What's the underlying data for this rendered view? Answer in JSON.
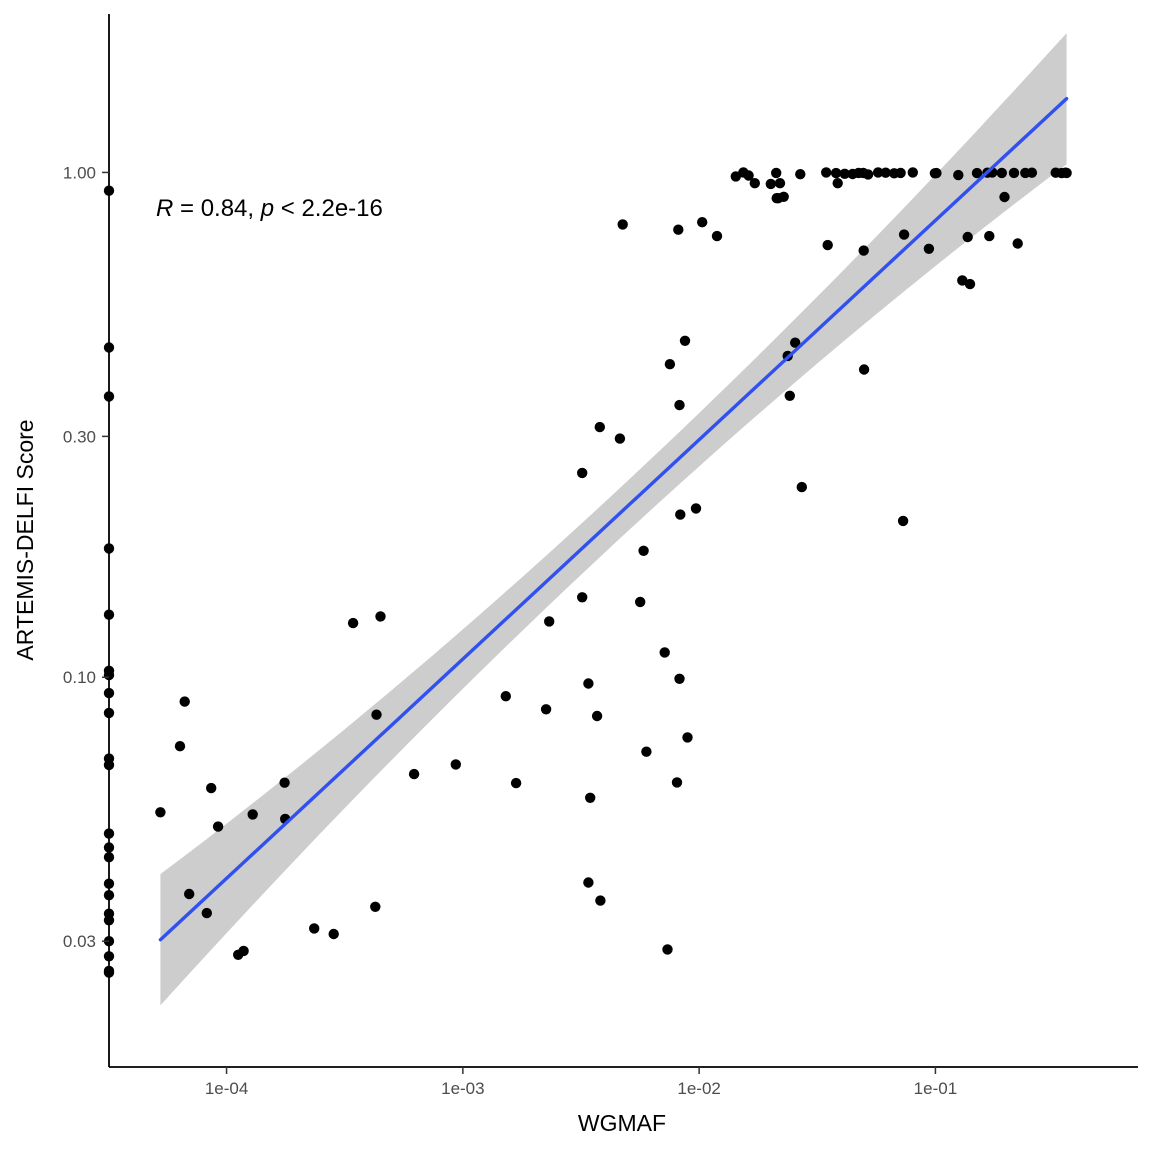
{
  "chart_data": {
    "type": "scatter",
    "title": "",
    "xlabel": "WGMAF",
    "ylabel": "ARTEMIS-DELFI Score",
    "x_scale": "log10",
    "y_scale": "log10",
    "xlim": [
      3.18e-05,
      0.72
    ],
    "ylim": [
      0.0169,
      2.06
    ],
    "x_ticks": [
      {
        "value": 0.0001,
        "label": "1e-04"
      },
      {
        "value": 0.001,
        "label": "1e-03"
      },
      {
        "value": 0.01,
        "label": "1e-02"
      },
      {
        "value": 0.1,
        "label": "1e-01"
      }
    ],
    "y_ticks": [
      {
        "value": 0.03,
        "label": "0.03"
      },
      {
        "value": 0.1,
        "label": "0.10"
      },
      {
        "value": 0.3,
        "label": "0.30"
      },
      {
        "value": 1.0,
        "label": "1.00"
      }
    ],
    "grid": false,
    "legend": "none",
    "annotation": {
      "r_symbol": "R",
      "r_text": " = 0.84, ",
      "p_symbol": "p",
      "p_text": " < 2.2e-16"
    },
    "colors": {
      "points": "#000000",
      "fit_line": "#3050f0",
      "ci_band": "#c8c8c8",
      "axis": "#000000"
    },
    "fit": {
      "x_start": 5.25e-05,
      "y_start": 0.0302,
      "x_end": 0.359,
      "y_end": 1.4,
      "ci_halfwidth_log_ends": 0.13,
      "ci_halfwidth_log_center": 0.05
    },
    "points": [
      [
        3.18e-05,
        0.92
      ],
      [
        3.18e-05,
        0.45
      ],
      [
        3.18e-05,
        0.36
      ],
      [
        3.18e-05,
        0.18
      ],
      [
        3.18e-05,
        0.133
      ],
      [
        3.18e-05,
        0.103
      ],
      [
        3.18e-05,
        0.101
      ],
      [
        3.18e-05,
        0.093
      ],
      [
        3.18e-05,
        0.085
      ],
      [
        3.18e-05,
        0.069
      ],
      [
        3.18e-05,
        0.067
      ],
      [
        3.18e-05,
        0.049
      ],
      [
        3.18e-05,
        0.046
      ],
      [
        3.18e-05,
        0.044
      ],
      [
        3.18e-05,
        0.039
      ],
      [
        3.18e-05,
        0.037
      ],
      [
        3.18e-05,
        0.034
      ],
      [
        3.18e-05,
        0.033
      ],
      [
        3.18e-05,
        0.03
      ],
      [
        3.18e-05,
        0.028
      ],
      [
        3.18e-05,
        0.026
      ],
      [
        3.18e-05,
        0.0262
      ],
      [
        5.25e-05,
        0.054
      ],
      [
        6.35e-05,
        0.073
      ],
      [
        6.65e-05,
        0.0895
      ],
      [
        6.95e-05,
        0.0372
      ],
      [
        8.25e-05,
        0.0341
      ],
      [
        8.61e-05,
        0.0603
      ],
      [
        9.21e-05,
        0.0506
      ],
      [
        0.000112,
        0.0282
      ],
      [
        0.000118,
        0.0287
      ],
      [
        0.000129,
        0.0535
      ],
      [
        0.000176,
        0.0618
      ],
      [
        0.000177,
        0.0524
      ],
      [
        0.000235,
        0.0318
      ],
      [
        0.000284,
        0.031
      ],
      [
        0.000343,
        0.128
      ],
      [
        0.000426,
        0.0351
      ],
      [
        0.000431,
        0.0843
      ],
      [
        0.000448,
        0.132
      ],
      [
        0.000622,
        0.0643
      ],
      [
        0.000934,
        0.0672
      ],
      [
        0.00152,
        0.0917
      ],
      [
        0.00168,
        0.0617
      ],
      [
        0.00225,
        0.0864
      ],
      [
        0.00232,
        0.129
      ],
      [
        0.0032,
        0.254
      ],
      [
        0.0032,
        0.144
      ],
      [
        0.0034,
        0.0972
      ],
      [
        0.0034,
        0.0392
      ],
      [
        0.00346,
        0.0577
      ],
      [
        0.0037,
        0.0838
      ],
      [
        0.00382,
        0.0361
      ],
      [
        0.0038,
        0.313
      ],
      [
        0.00462,
        0.297
      ],
      [
        0.00475,
        0.789
      ],
      [
        0.00563,
        0.141
      ],
      [
        0.00582,
        0.178
      ],
      [
        0.00598,
        0.0712
      ],
      [
        0.00715,
        0.112
      ],
      [
        0.00735,
        0.0289
      ],
      [
        0.00752,
        0.417
      ],
      [
        0.00806,
        0.0619
      ],
      [
        0.00816,
        0.77
      ],
      [
        0.00826,
        0.346
      ],
      [
        0.00826,
        0.0993
      ],
      [
        0.00832,
        0.21
      ],
      [
        0.00871,
        0.464
      ],
      [
        0.00893,
        0.076
      ],
      [
        0.0097,
        0.216
      ],
      [
        0.0103,
        0.797
      ],
      [
        0.0119,
        0.748
      ],
      [
        0.0143,
        0.982
      ],
      [
        0.0154,
        1.0
      ],
      [
        0.0162,
        0.986
      ],
      [
        0.0172,
        0.952
      ],
      [
        0.0201,
        0.949
      ],
      [
        0.0212,
        0.998
      ],
      [
        0.0213,
        0.889
      ],
      [
        0.0216,
        0.889
      ],
      [
        0.022,
        0.952
      ],
      [
        0.0228,
        0.895
      ],
      [
        0.0237,
        0.433
      ],
      [
        0.0242,
        0.361
      ],
      [
        0.0255,
        0.46
      ],
      [
        0.0268,
        0.992
      ],
      [
        0.0272,
        0.238
      ],
      [
        0.0345,
        1.0
      ],
      [
        0.035,
        0.718
      ],
      [
        0.038,
        0.997
      ],
      [
        0.0386,
        0.952
      ],
      [
        0.0413,
        0.994
      ],
      [
        0.0446,
        0.993
      ],
      [
        0.0473,
        0.998
      ],
      [
        0.0495,
        0.998
      ],
      [
        0.0497,
        0.7
      ],
      [
        0.0499,
        0.407
      ],
      [
        0.0519,
        0.991
      ],
      [
        0.0572,
        1.0
      ],
      [
        0.0616,
        0.999
      ],
      [
        0.0669,
        0.996
      ],
      [
        0.0712,
        0.998
      ],
      [
        0.073,
        0.204
      ],
      [
        0.0737,
        0.753
      ],
      [
        0.0802,
        1.0
      ],
      [
        0.0938,
        0.706
      ],
      [
        0.0995,
        0.996
      ],
      [
        0.101,
        0.997
      ],
      [
        0.125,
        0.988
      ],
      [
        0.13,
        0.611
      ],
      [
        0.137,
        0.745
      ],
      [
        0.14,
        0.601
      ],
      [
        0.15,
        0.997
      ],
      [
        0.166,
        0.999
      ],
      [
        0.169,
        0.748
      ],
      [
        0.174,
        1.0
      ],
      [
        0.191,
        0.998
      ],
      [
        0.196,
        0.894
      ],
      [
        0.215,
        0.998
      ],
      [
        0.223,
        0.723
      ],
      [
        0.24,
        0.998
      ],
      [
        0.256,
        0.999
      ],
      [
        0.323,
        0.999
      ],
      [
        0.342,
        0.997
      ],
      [
        0.355,
        0.999
      ],
      [
        0.359,
        0.998
      ]
    ]
  }
}
